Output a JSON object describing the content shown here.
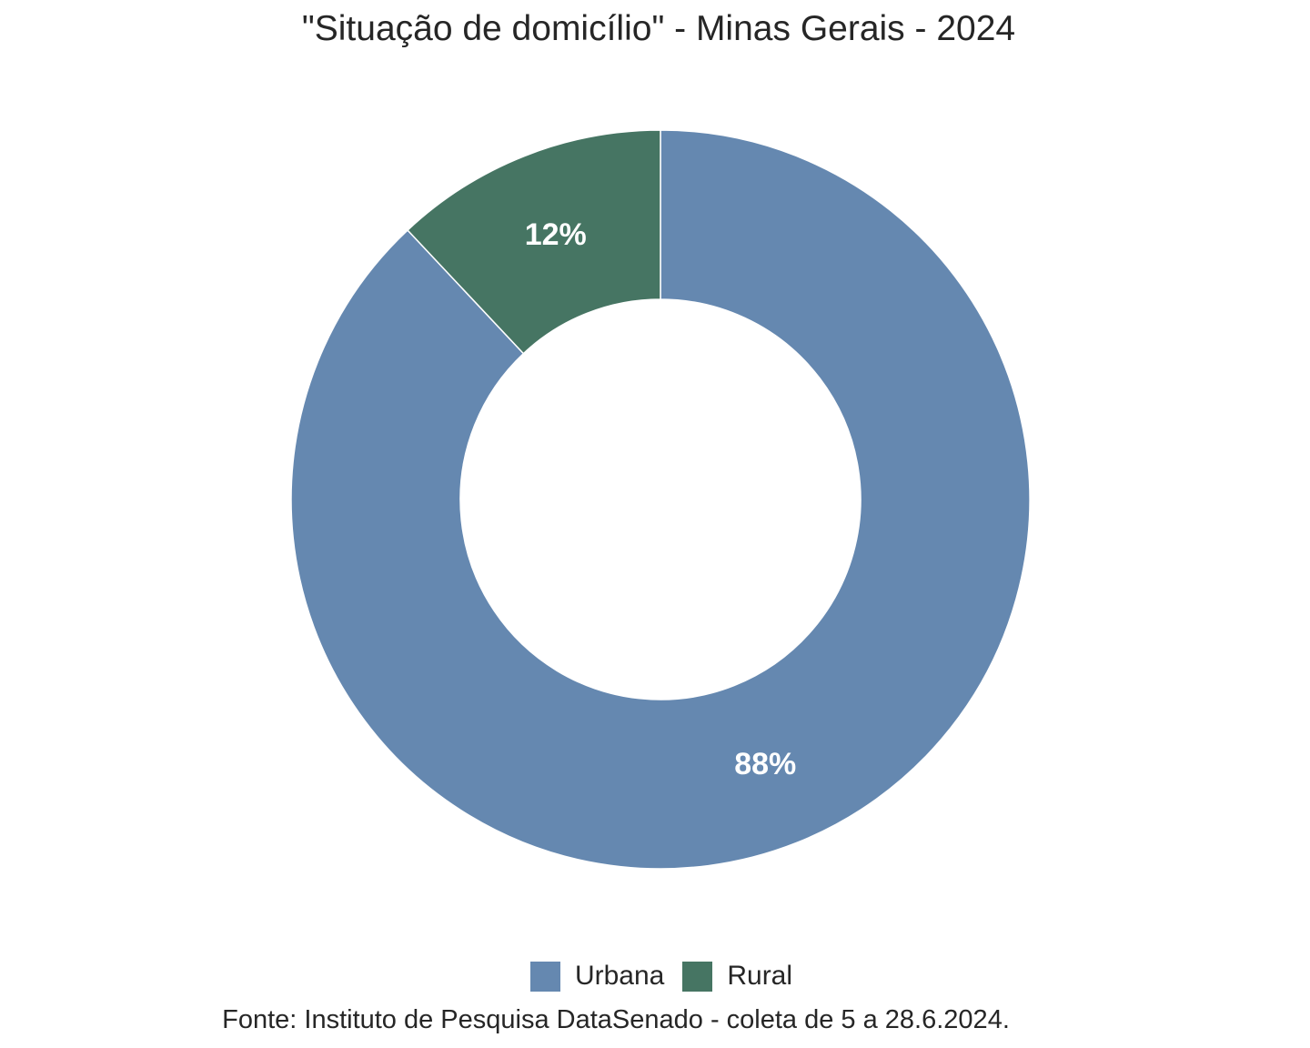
{
  "chart_data": {
    "type": "pie",
    "variant": "donut",
    "title": "\"Situação de domicílio\" - Minas Gerais - 2024",
    "categories": [
      "Urbana",
      "Rural"
    ],
    "values": [
      88,
      12
    ],
    "value_labels": [
      "88%",
      "12%"
    ],
    "colors": [
      "#6588B0",
      "#467563"
    ],
    "legend_position": "bottom",
    "caption": "Fonte: Instituto de Pesquisa DataSenado - coleta de 5 a 28.6.2024."
  }
}
